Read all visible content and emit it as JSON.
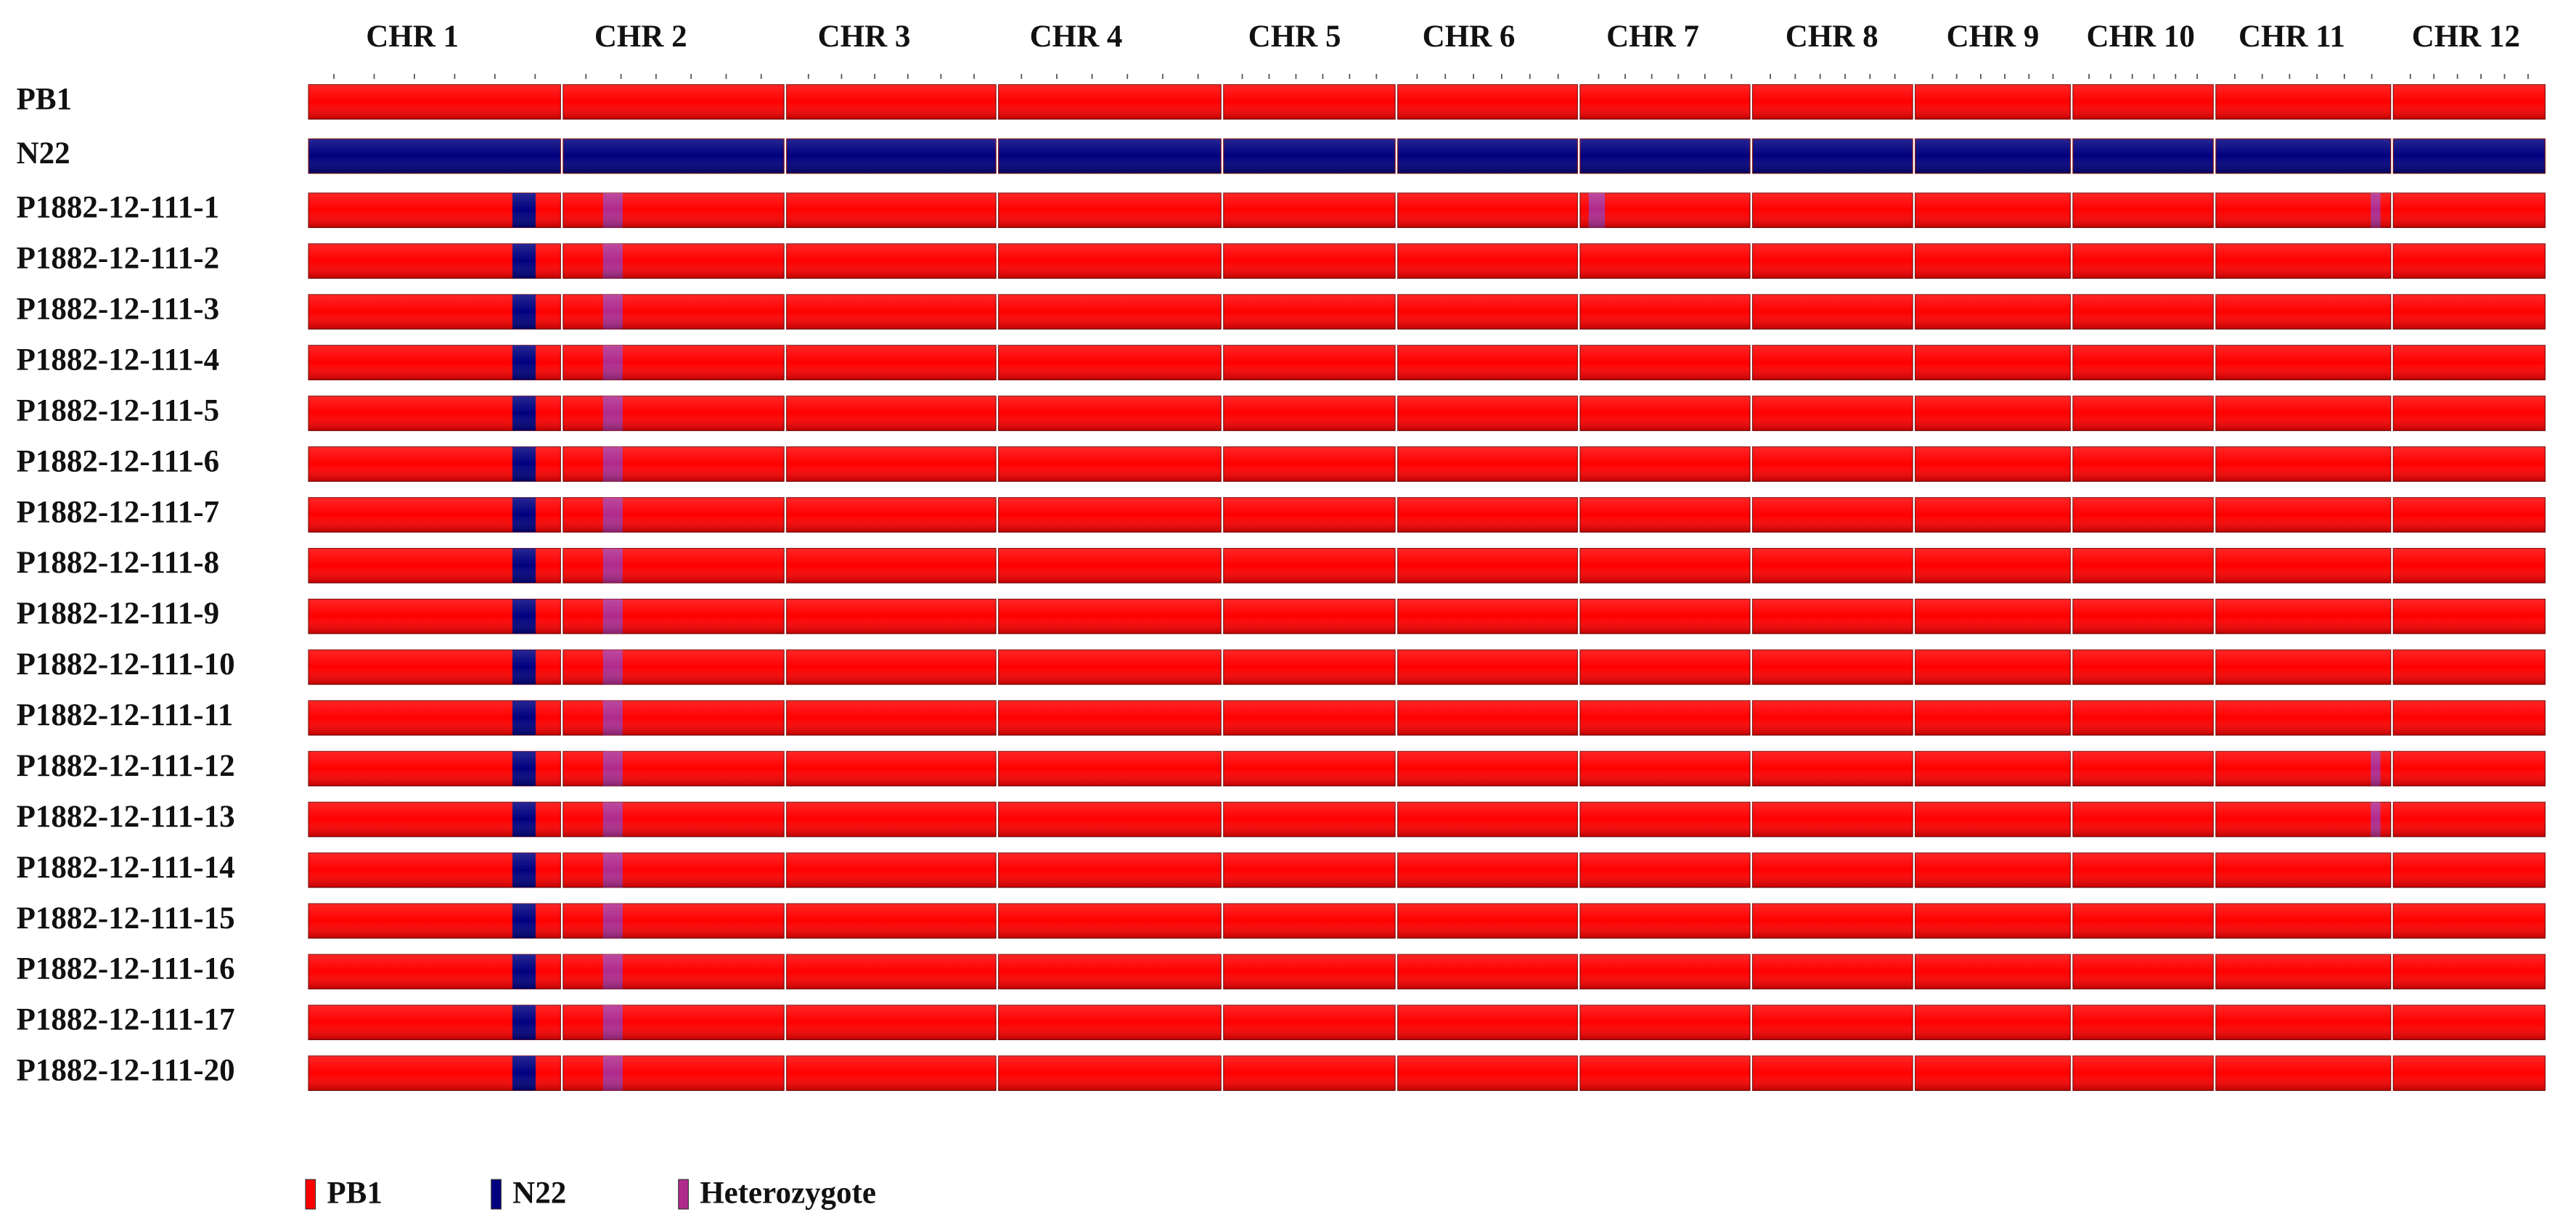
{
  "chromosomes": [
    "CHR 1",
    "CHR 2",
    "CHR 3",
    "CHR 4",
    "CHR 5",
    "CHR 6",
    "CHR 7",
    "CHR 8",
    "CHR 9",
    "CHR 10",
    "CHR 11",
    "CHR 12"
  ],
  "legend": [
    {
      "label": "PB1",
      "color": "#ff0000"
    },
    {
      "label": "N22",
      "color": "#00007f"
    },
    {
      "label": "Heterozygote",
      "color": "#b02a8c"
    }
  ],
  "samples": [
    {
      "name": "PB1",
      "background": 0,
      "segments": []
    },
    {
      "name": "N22",
      "background": 1,
      "segments": []
    },
    {
      "name": "P1882-12-111-1",
      "background": 0,
      "segments": [
        {
          "chromosome": 0,
          "genotype": 1
        },
        {
          "chromosome": 1,
          "genotype": 2
        },
        {
          "chromosome": 6,
          "genotype": 2
        },
        {
          "chromosome": 10,
          "genotype": 2
        }
      ]
    },
    {
      "name": "P1882-12-111-2",
      "background": 0,
      "segments": [
        {
          "chromosome": 0,
          "genotype": 1
        },
        {
          "chromosome": 1,
          "genotype": 2
        }
      ]
    },
    {
      "name": "P1882-12-111-3",
      "background": 0,
      "segments": [
        {
          "chromosome": 0,
          "genotype": 1
        },
        {
          "chromosome": 1,
          "genotype": 2
        }
      ]
    },
    {
      "name": "P1882-12-111-4",
      "background": 0,
      "segments": [
        {
          "chromosome": 0,
          "genotype": 1
        },
        {
          "chromosome": 1,
          "genotype": 2
        }
      ]
    },
    {
      "name": "P1882-12-111-5",
      "background": 0,
      "segments": [
        {
          "chromosome": 0,
          "genotype": 1
        },
        {
          "chromosome": 1,
          "genotype": 2
        }
      ]
    },
    {
      "name": "P1882-12-111-6",
      "background": 0,
      "segments": [
        {
          "chromosome": 0,
          "genotype": 1
        },
        {
          "chromosome": 1,
          "genotype": 2
        }
      ]
    },
    {
      "name": "P1882-12-111-7",
      "background": 0,
      "segments": [
        {
          "chromosome": 0,
          "genotype": 1
        },
        {
          "chromosome": 1,
          "genotype": 2
        }
      ]
    },
    {
      "name": "P1882-12-111-8",
      "background": 0,
      "segments": [
        {
          "chromosome": 0,
          "genotype": 1
        },
        {
          "chromosome": 1,
          "genotype": 2
        }
      ]
    },
    {
      "name": "P1882-12-111-9",
      "background": 0,
      "segments": [
        {
          "chromosome": 0,
          "genotype": 1
        },
        {
          "chromosome": 1,
          "genotype": 2
        }
      ]
    },
    {
      "name": "P1882-12-111-10",
      "background": 0,
      "segments": [
        {
          "chromosome": 0,
          "genotype": 1
        },
        {
          "chromosome": 1,
          "genotype": 2
        }
      ]
    },
    {
      "name": "P1882-12-111-11",
      "background": 0,
      "segments": [
        {
          "chromosome": 0,
          "genotype": 1
        },
        {
          "chromosome": 1,
          "genotype": 2
        }
      ]
    },
    {
      "name": "P1882-12-111-12",
      "background": 0,
      "segments": [
        {
          "chromosome": 0,
          "genotype": 1
        },
        {
          "chromosome": 1,
          "genotype": 2
        },
        {
          "chromosome": 10,
          "genotype": 2
        }
      ]
    },
    {
      "name": "P1882-12-111-13",
      "background": 0,
      "segments": [
        {
          "chromosome": 0,
          "genotype": 1
        },
        {
          "chromosome": 1,
          "genotype": 2
        },
        {
          "chromosome": 10,
          "genotype": 2
        }
      ]
    },
    {
      "name": "P1882-12-111-14",
      "background": 0,
      "segments": [
        {
          "chromosome": 0,
          "genotype": 1
        },
        {
          "chromosome": 1,
          "genotype": 2
        }
      ]
    },
    {
      "name": "P1882-12-111-15",
      "background": 0,
      "segments": [
        {
          "chromosome": 0,
          "genotype": 1
        },
        {
          "chromosome": 1,
          "genotype": 2
        }
      ]
    },
    {
      "name": "P1882-12-111-16",
      "background": 0,
      "segments": [
        {
          "chromosome": 0,
          "genotype": 1
        },
        {
          "chromosome": 1,
          "genotype": 2
        }
      ]
    },
    {
      "name": "P1882-12-111-17",
      "background": 0,
      "segments": [
        {
          "chromosome": 0,
          "genotype": 1
        },
        {
          "chromosome": 1,
          "genotype": 2
        }
      ]
    },
    {
      "name": "P1882-12-111-20",
      "background": 0,
      "segments": [
        {
          "chromosome": 0,
          "genotype": 1
        },
        {
          "chromosome": 1,
          "genotype": 2
        }
      ]
    }
  ]
}
